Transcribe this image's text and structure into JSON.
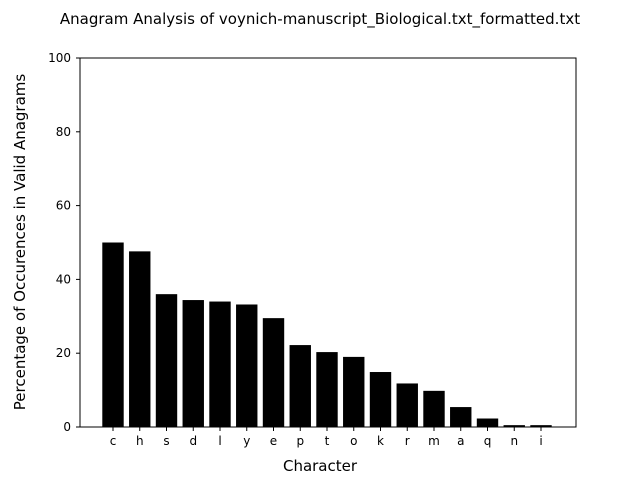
{
  "chart_data": {
    "type": "bar",
    "title": "Anagram Analysis of voynich-manuscript_Biological.txt_formatted.txt",
    "xlabel": "Character",
    "ylabel": "Percentage of Occurences in Valid Anagrams",
    "categories": [
      "c",
      "h",
      "s",
      "d",
      "l",
      "y",
      "e",
      "p",
      "t",
      "o",
      "k",
      "r",
      "m",
      "a",
      "q",
      "n",
      "i"
    ],
    "values": [
      50.0,
      47.6,
      36.0,
      34.4,
      34.0,
      33.2,
      29.5,
      22.2,
      20.3,
      19.0,
      14.9,
      11.8,
      9.8,
      5.4,
      2.3,
      0.5,
      0.5
    ],
    "ylim": [
      0,
      100
    ],
    "yticks": [
      0,
      20,
      40,
      60,
      80,
      100
    ],
    "grid": false,
    "legend": "none",
    "bar_color": "#000000"
  }
}
